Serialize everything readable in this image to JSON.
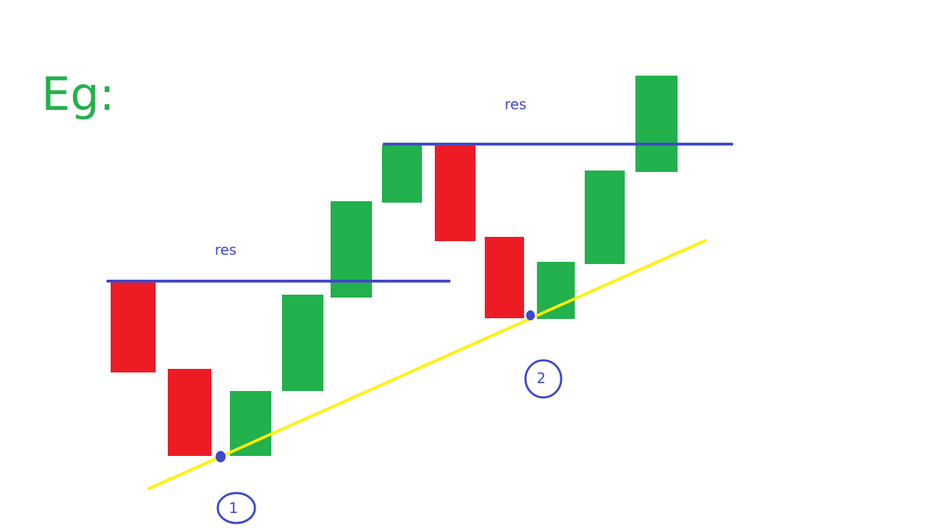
{
  "heading": "Eg:",
  "resistance_label": "res",
  "touch_labels": [
    "1",
    "2"
  ],
  "colors": {
    "bullish": "#22b14c",
    "bearish": "#ed1c24",
    "resistance_line": "#3f48cc",
    "trend_line": "#fff200",
    "annotation": "#3f48cc",
    "heading": "#22b14c"
  },
  "candles": [
    {
      "direction": "bearish"
    },
    {
      "direction": "bearish"
    },
    {
      "direction": "bullish"
    },
    {
      "direction": "bullish"
    },
    {
      "direction": "bullish"
    },
    {
      "direction": "bullish"
    },
    {
      "direction": "bearish"
    },
    {
      "direction": "bearish"
    },
    {
      "direction": "bullish"
    },
    {
      "direction": "bullish"
    },
    {
      "direction": "bullish"
    }
  ]
}
